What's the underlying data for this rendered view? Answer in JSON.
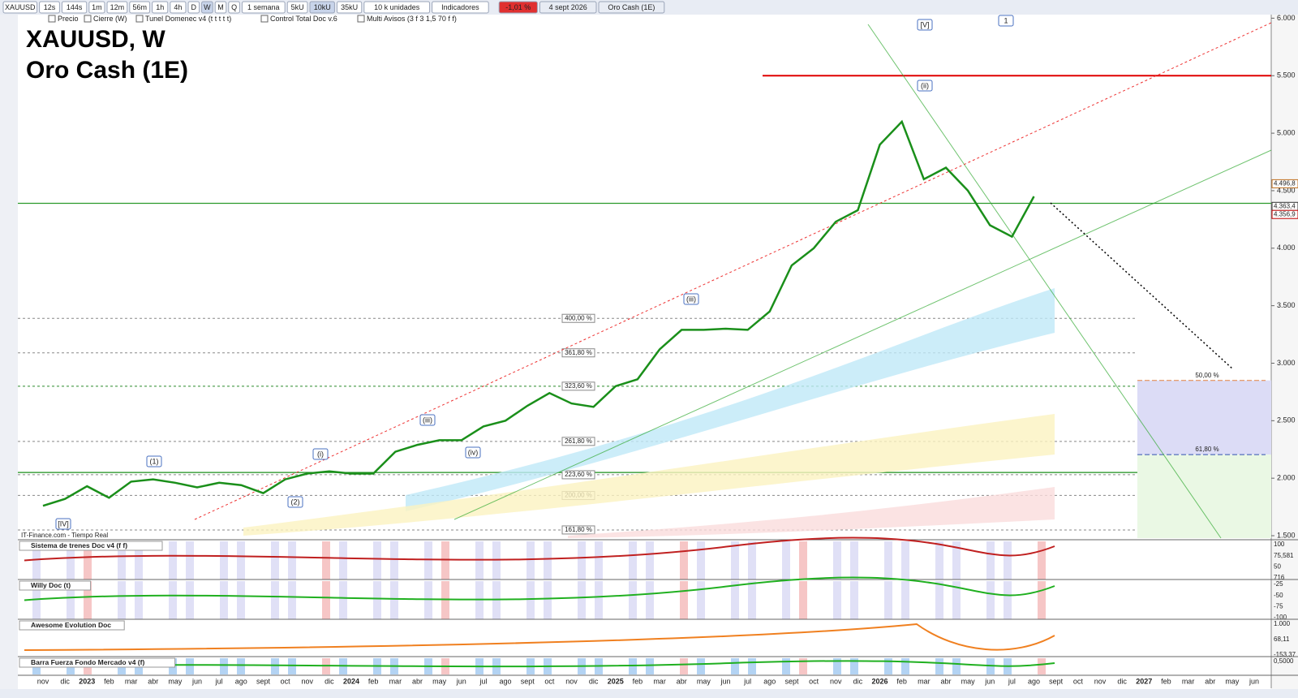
{
  "toolbar": {
    "symbol": "XAUUSD",
    "intervals": [
      "12s",
      "144s",
      "1m",
      "12m",
      "56m",
      "1h",
      "4h",
      "D",
      "W",
      "M",
      "Q"
    ],
    "period": "1 semana",
    "units": [
      "5kU",
      "10kU",
      "35kU"
    ],
    "unit_menu": "10 k unidades",
    "indicators": "Indicadores",
    "change": "-1,01 %",
    "date": "4 sept 2026",
    "name": "Oro Cash (1E)"
  },
  "legend": [
    "Precio",
    "Cierre (W)",
    "Tunel Domenec v4 (t t t t t)",
    "Control Total Doc v.6",
    "Multi Avisos (3 f 3 1,5 70 f f)"
  ],
  "source": "IT-Finance.com - Tiempo Real",
  "chart_data": {
    "type": "line",
    "title": "XAUUSD, W",
    "subtitle": "Oro Cash (1E)",
    "categories": [
      "nov",
      "dic",
      "2023",
      "feb",
      "mar",
      "abr",
      "may",
      "jun",
      "jul",
      "ago",
      "sept",
      "oct",
      "nov",
      "dic",
      "2024",
      "feb",
      "mar",
      "abr",
      "may",
      "jun",
      "jul",
      "ago",
      "sept",
      "oct",
      "nov",
      "dic",
      "2025",
      "feb",
      "mar",
      "abr",
      "may",
      "jun",
      "jul",
      "ago",
      "sept",
      "oct",
      "nov",
      "dic",
      "2026",
      "feb",
      "mar",
      "abr",
      "may",
      "jun",
      "jul",
      "ago",
      "sept",
      "oct",
      "nov",
      "dic",
      "2027",
      "feb",
      "mar",
      "abr",
      "may",
      "jun"
    ],
    "values": [
      1760,
      1820,
      1930,
      1830,
      1970,
      1990,
      1960,
      1920,
      1960,
      1940,
      1870,
      1990,
      2040,
      2060,
      2040,
      2040,
      2230,
      2290,
      2330,
      2330,
      2450,
      2500,
      2630,
      2740,
      2650,
      2620,
      2800,
      2860,
      3120,
      3290,
      3290,
      3300,
      3290,
      3450,
      3850,
      4000,
      4230,
      4330,
      4900,
      5100,
      4600,
      4700,
      4500,
      4200,
      4100,
      4450,
      null,
      null,
      null,
      null,
      null,
      null,
      null,
      null,
      null,
      null
    ],
    "color": "#1a8f1a",
    "ylim": [
      1479,
      6017
    ],
    "yticks": [
      {
        "value": 1500,
        "label": "1.500"
      },
      {
        "value": 2000,
        "label": "2.000"
      },
      {
        "value": 2500,
        "label": "2.500"
      },
      {
        "value": 3000,
        "label": "3.000"
      },
      {
        "value": 3500,
        "label": "3.500"
      },
      {
        "value": 4000,
        "label": "4.000"
      },
      {
        "value": 4500,
        "label": "4.500"
      },
      {
        "value": 5000,
        "label": "5.000"
      },
      {
        "value": 5500,
        "label": "5.500"
      },
      {
        "value": 6000,
        "label": "6.000"
      }
    ],
    "price_tags": [
      {
        "value": 4496.8,
        "label": "4.496,8",
        "color": "#c07020"
      },
      {
        "value": 4363.4,
        "label": "4.363,4",
        "color": "#333333"
      },
      {
        "value": 4356.9,
        "label": "4.356,9",
        "color": "#c00000"
      }
    ],
    "levels": [
      {
        "value": 5500,
        "color": "#e00000"
      },
      {
        "value": 4390,
        "color": "#2a9a2a"
      },
      {
        "value": 2050,
        "color": "#1a8f1a"
      }
    ],
    "fib_levels": [
      {
        "label": "400,00 %",
        "value": 3390
      },
      {
        "label": "361,80 %",
        "value": 3090
      },
      {
        "label": "323,60 %",
        "value": 2800
      },
      {
        "label": "261,80 %",
        "value": 2320
      },
      {
        "label": "223,60 %",
        "value": 2030
      },
      {
        "label": "200,00 %",
        "value": 1850
      },
      {
        "label": "161,80 %",
        "value": 1550
      }
    ],
    "projection_levels": [
      {
        "label": "50,00 %",
        "value": 2850
      },
      {
        "label": "61,80 %",
        "value": 2205
      }
    ],
    "wave_labels": [
      "[IV]",
      "(1)",
      "(2)",
      "(i)",
      "(iii)",
      "(iv)",
      "(iii)",
      "(ii)",
      "[V]",
      "1"
    ]
  },
  "panels": [
    {
      "name": "Sistema de trenes Doc v4 (f f)",
      "labels": [
        "100",
        "75,581",
        "50",
        "716"
      ]
    },
    {
      "name": "Willy Doc (t)",
      "labels": [
        "-25",
        "-50",
        "-75",
        "-100"
      ]
    },
    {
      "name": "Awesome Evolution Doc",
      "labels": [
        "1.000",
        "68,11",
        "-153,37"
      ]
    },
    {
      "name": "Barra Fuerza Fondo Mercado v4 (f)",
      "labels": [
        "0,5000"
      ]
    }
  ]
}
